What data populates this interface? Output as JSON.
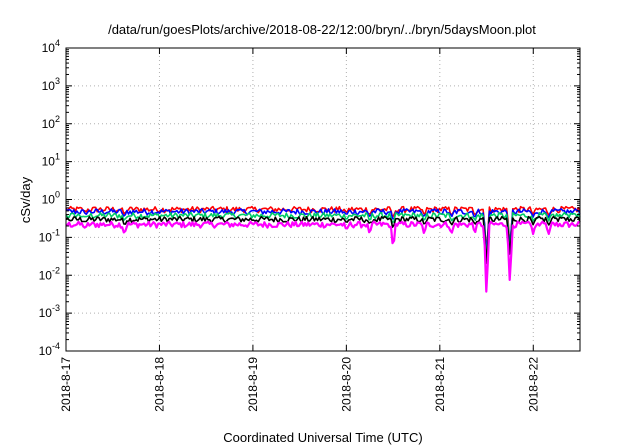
{
  "chart_data": {
    "type": "line",
    "title": "/data/run/goesPlots/archive/2018-08-22/12:00/bryn/../bryn/5daysMoon.plot",
    "xlabel": "Coordinated Universal Time (UTC)",
    "ylabel": "cSv/day",
    "yscale": "log",
    "ylim": [
      0.0001,
      10000
    ],
    "y_ticks": [
      {
        "value": 0.0001,
        "base": "10",
        "exp": "-4"
      },
      {
        "value": 0.001,
        "base": "10",
        "exp": "-3"
      },
      {
        "value": 0.01,
        "base": "10",
        "exp": "-2"
      },
      {
        "value": 0.1,
        "base": "10",
        "exp": "-1"
      },
      {
        "value": 1,
        "base": "10",
        "exp": "0"
      },
      {
        "value": 10,
        "base": "10",
        "exp": "1"
      },
      {
        "value": 100,
        "base": "10",
        "exp": "2"
      },
      {
        "value": 1000,
        "base": "10",
        "exp": "3"
      },
      {
        "value": 10000,
        "base": "10",
        "exp": "4"
      }
    ],
    "xlim": [
      "2018-08-17T00:00",
      "2018-08-22T12:00"
    ],
    "x_ticks": [
      "2018-8-17",
      "2018-8-18",
      "2018-8-19",
      "2018-8-20",
      "2018-8-21",
      "2018-8-22"
    ],
    "grid": true,
    "legend": "none",
    "series": [
      {
        "color": "#ff0000",
        "base": 0.55
      },
      {
        "color": "#0000ff",
        "base": 0.48
      },
      {
        "color": "#00cc66",
        "base": 0.38
      },
      {
        "color": "#000000",
        "base": 0.3
      },
      {
        "color": "#ff00ff",
        "base": 0.22
      }
    ],
    "dips": [
      {
        "x": "2018-08-17T05:00",
        "magenta": 0.17,
        "others": 0.85
      },
      {
        "x": "2018-08-17T15:00",
        "magenta": 0.12,
        "others": 0.7
      },
      {
        "x": "2018-08-20T00:00",
        "magenta": 0.15,
        "others": 0.8
      },
      {
        "x": "2018-08-20T06:00",
        "magenta": 0.12,
        "others": 0.7
      },
      {
        "x": "2018-08-20T12:00",
        "magenta": 0.05,
        "others": 0.55
      },
      {
        "x": "2018-08-20T20:00",
        "magenta": 0.12,
        "others": 0.7
      },
      {
        "x": "2018-08-21T03:00",
        "magenta": 0.12,
        "others": 0.7
      },
      {
        "x": "2018-08-21T09:00",
        "magenta": 0.13,
        "others": 0.7
      },
      {
        "x": "2018-08-21T12:00",
        "magenta": 0.0022,
        "others": 0.05
      },
      {
        "x": "2018-08-21T18:00",
        "magenta": 0.0055,
        "others": 0.1
      },
      {
        "x": "2018-08-22T00:00",
        "magenta": 0.12,
        "others": 0.7
      },
      {
        "x": "2018-08-22T04:00",
        "magenta": 0.12,
        "others": 0.7
      }
    ]
  }
}
